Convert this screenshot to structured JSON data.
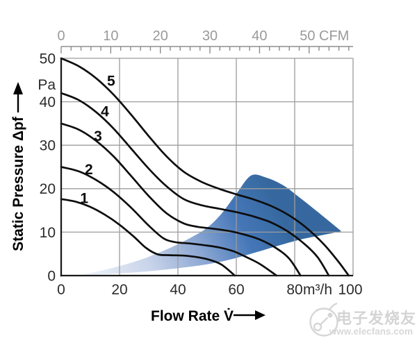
{
  "page": {
    "background": "#ffffff"
  },
  "watermark": {
    "brand": "电子发烧友",
    "url": "www.elecfans.com",
    "color": "#d4d4d4"
  },
  "chart_data": {
    "type": "line",
    "title": "",
    "x_axis_bottom": {
      "title": "Flow Rate V̇",
      "unit": "m³/h",
      "ticks": [
        0,
        20,
        40,
        60,
        80,
        100
      ],
      "range": [
        0,
        100
      ]
    },
    "x_axis_top": {
      "unit": "CFM",
      "tick_labels": [
        "0",
        "10",
        "20",
        "30",
        "40",
        "50 CFM"
      ],
      "tick_values_cfm": [
        0,
        10,
        20,
        30,
        40,
        50
      ],
      "minor_step_cfm": 2,
      "minor_max_cfm": 58,
      "cfm_to_m3h": 1.699
    },
    "y_axis": {
      "title": "Static Pressure Δpf",
      "unit": "Pa",
      "ticks": [
        0,
        10,
        20,
        30,
        40,
        50
      ],
      "range": [
        0,
        50
      ]
    },
    "grid": {
      "vertical_m3h": [
        20,
        40,
        60,
        80,
        100
      ],
      "horizontal_pa": [
        10,
        20,
        30,
        40,
        50
      ]
    },
    "series": [
      {
        "name": "1",
        "label_pos": [
          7.9,
          17.9
        ],
        "points": [
          [
            0,
            17.6
          ],
          [
            5,
            17.0
          ],
          [
            10,
            15.8
          ],
          [
            15,
            14.0
          ],
          [
            20,
            11.7
          ],
          [
            25,
            8.9
          ],
          [
            29,
            6.4
          ],
          [
            33,
            4.9
          ],
          [
            37,
            4.7
          ],
          [
            42,
            4.6
          ],
          [
            47,
            4.2
          ],
          [
            51,
            3.6
          ],
          [
            55,
            2.5
          ],
          [
            59.5,
            0
          ]
        ]
      },
      {
        "name": "2",
        "label_pos": [
          9.5,
          24.5
        ],
        "points": [
          [
            0,
            25
          ],
          [
            6,
            24.0
          ],
          [
            12,
            22.0
          ],
          [
            18,
            19.2
          ],
          [
            24,
            15.6
          ],
          [
            30,
            11.5
          ],
          [
            35,
            8.6
          ],
          [
            39,
            7.7
          ],
          [
            44,
            7.4
          ],
          [
            49,
            7.0
          ],
          [
            54,
            6.5
          ],
          [
            59,
            5.6
          ],
          [
            63,
            4.4
          ],
          [
            68,
            2.7
          ],
          [
            73.8,
            0
          ]
        ]
      },
      {
        "name": "3",
        "label_pos": [
          12.6,
          32.2
        ],
        "points": [
          [
            0,
            35
          ],
          [
            6,
            33.6
          ],
          [
            12,
            31.0
          ],
          [
            18,
            27.4
          ],
          [
            24,
            22.9
          ],
          [
            30,
            18.3
          ],
          [
            36,
            14.4
          ],
          [
            42,
            12.0
          ],
          [
            47,
            11.2
          ],
          [
            52,
            10.8
          ],
          [
            58,
            10.2
          ],
          [
            63,
            9.4
          ],
          [
            68,
            8.3
          ],
          [
            73,
            6.6
          ],
          [
            78,
            4.0
          ],
          [
            82,
            0
          ]
        ]
      },
      {
        "name": "4",
        "label_pos": [
          15.0,
          37.8
        ],
        "points": [
          [
            0,
            42
          ],
          [
            6,
            40.4
          ],
          [
            12,
            37.6
          ],
          [
            18,
            33.8
          ],
          [
            24,
            29.2
          ],
          [
            30,
            24.6
          ],
          [
            36,
            20.6
          ],
          [
            42,
            17.6
          ],
          [
            48,
            16.2
          ],
          [
            54,
            15.4
          ],
          [
            60,
            14.6
          ],
          [
            66,
            13.6
          ],
          [
            72,
            12.2
          ],
          [
            78,
            10.0
          ],
          [
            84,
            6.9
          ],
          [
            88,
            4.1
          ],
          [
            91.7,
            0
          ]
        ]
      },
      {
        "name": "5",
        "label_pos": [
          17.1,
          44.9
        ],
        "points": [
          [
            0,
            50
          ],
          [
            6,
            48.2
          ],
          [
            12,
            45.4
          ],
          [
            18,
            41.6
          ],
          [
            24,
            37.0
          ],
          [
            30,
            32.1
          ],
          [
            36,
            27.5
          ],
          [
            42,
            23.9
          ],
          [
            48,
            21.6
          ],
          [
            54,
            20.0
          ],
          [
            60,
            18.7
          ],
          [
            66,
            17.5
          ],
          [
            72,
            16.0
          ],
          [
            78,
            13.9
          ],
          [
            84,
            11.0
          ],
          [
            90,
            7.2
          ],
          [
            95,
            3.2
          ],
          [
            98.5,
            0
          ]
        ]
      }
    ],
    "operating_area": {
      "upper": [
        [
          5,
          0
        ],
        [
          12,
          0.9
        ],
        [
          20,
          2.2
        ],
        [
          26,
          3.4
        ],
        [
          31,
          4.6
        ],
        [
          38,
          6.6
        ],
        [
          44,
          8.6
        ],
        [
          50,
          11.0
        ],
        [
          55,
          14.3
        ],
        [
          60,
          18.8
        ],
        [
          65,
          23.0
        ],
        [
          70,
          22.6
        ],
        [
          76,
          20.8
        ],
        [
          82,
          17.8
        ],
        [
          88,
          14.6
        ],
        [
          96,
          10.2
        ]
      ],
      "lower": [
        [
          5,
          0
        ],
        [
          12,
          0.2
        ],
        [
          20,
          0.5
        ],
        [
          30,
          1.0
        ],
        [
          40,
          1.7
        ],
        [
          50,
          2.6
        ],
        [
          58,
          3.7
        ],
        [
          66,
          5.2
        ],
        [
          74,
          6.8
        ],
        [
          82,
          8.3
        ],
        [
          90,
          9.4
        ],
        [
          96,
          10.2
        ]
      ],
      "gradient": [
        "#f4f7fc",
        "#c9d4ea",
        "#8aa6d2",
        "#4577b8",
        "#36689f"
      ]
    },
    "layout_hints": {
      "grid": "on",
      "legend": "none",
      "curve_labels_on_plot": true
    }
  },
  "colors": {
    "curve": "#0d0d0d",
    "grid": "#9c9c9c",
    "axis": "#1a1a1a",
    "top_axis": "#9a9a9a"
  }
}
